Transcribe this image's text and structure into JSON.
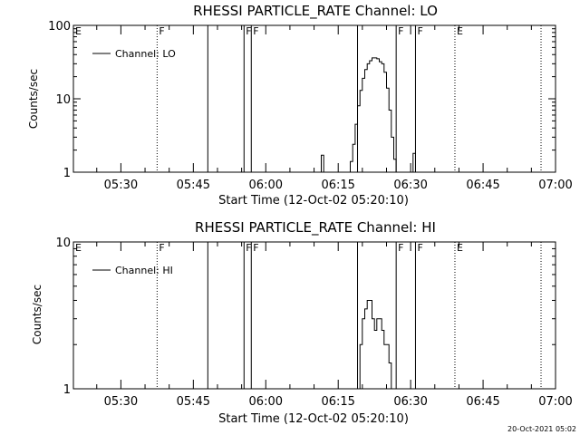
{
  "footer_timestamp": "20-Oct-2021 05:02",
  "chart_data": [
    {
      "type": "line",
      "title": "RHESSI PARTICLE_RATE Channel: LO",
      "xlabel": "Start Time (12-Oct-02 05:20:10)",
      "ylabel": "Counts/sec",
      "yscale": "log",
      "ylim": [
        1,
        100
      ],
      "yticks": [
        {
          "value": 1,
          "label": "1"
        },
        {
          "value": 10,
          "label": "10"
        },
        {
          "value": 100,
          "label": "100"
        }
      ],
      "xlim": [
        "05:20:10",
        "07:00:00"
      ],
      "xticks": [
        "05:30",
        "05:45",
        "06:00",
        "06:15",
        "06:30",
        "06:45",
        "07:00"
      ],
      "grid": false,
      "legend": {
        "position": "top-left",
        "entries": [
          "Channel: LO"
        ]
      },
      "series": [
        {
          "name": "Channel: LO",
          "x": [
            "06:11:00",
            "06:11:30",
            "06:12:00",
            "06:12:30",
            "06:13:00",
            "06:17:00",
            "06:17:30",
            "06:18:00",
            "06:18:30",
            "06:19:00",
            "06:19:30",
            "06:20:00",
            "06:20:30",
            "06:21:00",
            "06:21:30",
            "06:22:00",
            "06:22:30",
            "06:23:00",
            "06:23:30",
            "06:24:00",
            "06:24:30",
            "06:25:00",
            "06:25:30",
            "06:26:00",
            "06:26:30",
            "06:27:00",
            "06:27:30",
            "06:28:00",
            "06:30:00",
            "06:30:30",
            "06:31:00"
          ],
          "y": [
            1,
            1.7,
            1,
            1,
            1,
            1,
            1.4,
            2.4,
            4.5,
            8,
            13,
            19,
            25,
            30,
            33,
            36,
            36,
            35,
            32,
            30,
            23,
            14,
            7,
            3,
            1.5,
            1,
            1,
            1,
            1,
            1.8,
            1
          ]
        }
      ],
      "annotations": [
        {
          "text": "E",
          "time": "05:20:10",
          "line": "none"
        },
        {
          "text": "F",
          "time": "05:37:30",
          "line": "dotted"
        },
        {
          "text": "",
          "time": "05:48:00",
          "line": "solid"
        },
        {
          "text": "F",
          "time": "05:55:30",
          "line": "solid"
        },
        {
          "text": "F",
          "time": "05:57:00",
          "line": "solid"
        },
        {
          "text": "",
          "time": "06:19:00",
          "line": "solid"
        },
        {
          "text": "F",
          "time": "06:27:00",
          "line": "solid"
        },
        {
          "text": "F",
          "time": "06:31:00",
          "line": "solid"
        },
        {
          "text": "E",
          "time": "06:39:10",
          "line": "dotted"
        },
        {
          "text": "",
          "time": "06:57:00",
          "line": "dotted"
        }
      ]
    },
    {
      "type": "line",
      "title": "RHESSI PARTICLE_RATE Channel: HI",
      "xlabel": "Start Time (12-Oct-02 05:20:10)",
      "ylabel": "Counts/sec",
      "yscale": "log",
      "ylim": [
        1,
        10
      ],
      "yticks": [
        {
          "value": 1,
          "label": "1"
        },
        {
          "value": 10,
          "label": "10"
        }
      ],
      "xlim": [
        "05:20:10",
        "07:00:00"
      ],
      "xticks": [
        "05:30",
        "05:45",
        "06:00",
        "06:15",
        "06:30",
        "06:45",
        "07:00"
      ],
      "grid": false,
      "legend": {
        "position": "top-left",
        "entries": [
          "Channel: HI"
        ]
      },
      "series": [
        {
          "name": "Channel: HI",
          "x": [
            "06:19:00",
            "06:19:30",
            "06:20:00",
            "06:20:30",
            "06:21:00",
            "06:21:30",
            "06:22:00",
            "06:22:30",
            "06:23:00",
            "06:23:30",
            "06:24:00",
            "06:24:30",
            "06:25:00",
            "06:25:30",
            "06:26:00"
          ],
          "y": [
            1,
            2,
            3,
            3.5,
            4,
            4,
            3,
            2.5,
            3,
            3,
            2.5,
            2,
            2,
            1.5,
            1
          ]
        }
      ],
      "annotations": [
        {
          "text": "E",
          "time": "05:20:10",
          "line": "none"
        },
        {
          "text": "F",
          "time": "05:37:30",
          "line": "dotted"
        },
        {
          "text": "",
          "time": "05:48:00",
          "line": "solid"
        },
        {
          "text": "F",
          "time": "05:55:30",
          "line": "solid"
        },
        {
          "text": "F",
          "time": "05:57:00",
          "line": "solid"
        },
        {
          "text": "",
          "time": "06:19:00",
          "line": "solid"
        },
        {
          "text": "F",
          "time": "06:27:00",
          "line": "solid"
        },
        {
          "text": "F",
          "time": "06:31:00",
          "line": "solid"
        },
        {
          "text": "E",
          "time": "06:39:10",
          "line": "dotted"
        },
        {
          "text": "",
          "time": "06:57:00",
          "line": "dotted"
        }
      ]
    }
  ]
}
